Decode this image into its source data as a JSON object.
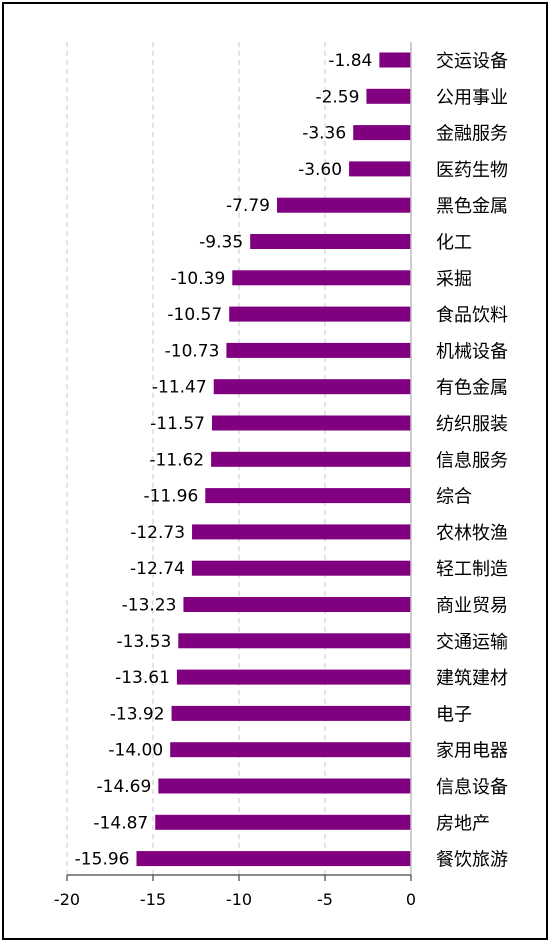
{
  "chart_data": {
    "type": "bar",
    "orientation": "horizontal",
    "categories": [
      "交运设备",
      "公用事业",
      "金融服务",
      "医药生物",
      "黑色金属",
      "化工",
      "采掘",
      "食品饮料",
      "机械设备",
      "有色金属",
      "纺织服装",
      "信息服务",
      "综合",
      "农林牧渔",
      "轻工制造",
      "商业贸易",
      "交通运输",
      "建筑建材",
      "电子",
      "家用电器",
      "信息设备",
      "房地产",
      "餐饮旅游"
    ],
    "values": [
      -1.84,
      -2.59,
      -3.36,
      -3.6,
      -7.79,
      -9.35,
      -10.39,
      -10.57,
      -10.73,
      -11.47,
      -11.57,
      -11.62,
      -11.96,
      -12.73,
      -12.74,
      -13.23,
      -13.53,
      -13.61,
      -13.92,
      -14.0,
      -14.69,
      -14.87,
      -15.96
    ],
    "value_labels": [
      "-1.84",
      "-2.59",
      "-3.36",
      "-3.60",
      "-7.79",
      "-9.35",
      "-10.39",
      "-10.57",
      "-10.73",
      "-11.47",
      "-11.57",
      "-11.62",
      "-11.96",
      "-12.73",
      "-12.74",
      "-13.23",
      "-13.53",
      "-13.61",
      "-13.92",
      "-14.00",
      "-14.69",
      "-14.87",
      "-15.96"
    ],
    "xlim": [
      -20,
      0
    ],
    "xticks": [
      -20,
      -15,
      -10,
      -5,
      0
    ],
    "xtick_labels": [
      "-20",
      "-15",
      "-10",
      "-5",
      "0"
    ],
    "grid": "vertical dashed",
    "bar_color": "#800080",
    "title": "",
    "xlabel": "",
    "ylabel": "",
    "legend": "none"
  }
}
